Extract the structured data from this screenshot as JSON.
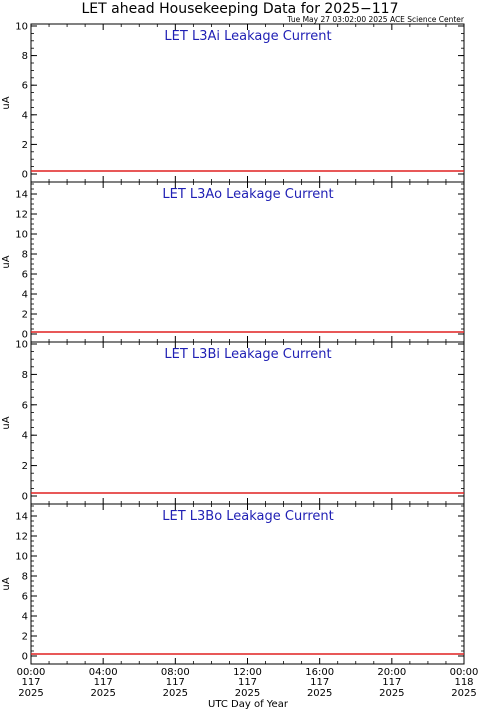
{
  "figure": {
    "title": "LET ahead Housekeeping Data for 2025−117",
    "timestamp": "Tue May 27 03:02:00 2025 ACE Science Center",
    "xlabel": "UTC Day of Year",
    "title_color": "#000000",
    "panel_title_color": "#1f1fb4",
    "series_color": "#e02020"
  },
  "chart_data": [
    {
      "type": "line",
      "title": "LET L3Ai Leakage Current",
      "ylabel": "uA",
      "ylim": [
        0,
        10
      ],
      "yticks": [
        0,
        2,
        4,
        6,
        8,
        10
      ],
      "x_range_hours": [
        0,
        24
      ],
      "series": [
        {
          "x": [
            0,
            24
          ],
          "y": [
            0.2,
            0.2
          ]
        }
      ]
    },
    {
      "type": "line",
      "title": "LET L3Ao Leakage Current",
      "ylabel": "uA",
      "ylim": [
        0,
        15
      ],
      "yticks": [
        0,
        2,
        4,
        6,
        8,
        10,
        12,
        14
      ],
      "x_range_hours": [
        0,
        24
      ],
      "series": [
        {
          "x": [
            0,
            24
          ],
          "y": [
            0.2,
            0.2
          ]
        }
      ]
    },
    {
      "type": "line",
      "title": "LET L3Bi Leakage Current",
      "ylabel": "uA",
      "ylim": [
        0,
        10
      ],
      "yticks": [
        0,
        2,
        4,
        6,
        8,
        10
      ],
      "x_range_hours": [
        0,
        24
      ],
      "series": [
        {
          "x": [
            0,
            24
          ],
          "y": [
            0.2,
            0.2
          ]
        }
      ]
    },
    {
      "type": "line",
      "title": "LET L3Bo Leakage Current",
      "ylabel": "uA",
      "ylim": [
        0,
        15
      ],
      "yticks": [
        0,
        2,
        4,
        6,
        8,
        10,
        12,
        14
      ],
      "x_range_hours": [
        0,
        24
      ],
      "series": [
        {
          "x": [
            0,
            24
          ],
          "y": [
            0.2,
            0.2
          ]
        }
      ]
    }
  ],
  "x_axis": {
    "ticks": [
      {
        "hour": 0,
        "time": "00:00",
        "doy": "117",
        "year": "2025"
      },
      {
        "hour": 4,
        "time": "04:00",
        "doy": "117",
        "year": "2025"
      },
      {
        "hour": 8,
        "time": "08:00",
        "doy": "117",
        "year": "2025"
      },
      {
        "hour": 12,
        "time": "12:00",
        "doy": "117",
        "year": "2025"
      },
      {
        "hour": 16,
        "time": "16:00",
        "doy": "117",
        "year": "2025"
      },
      {
        "hour": 20,
        "time": "20:00",
        "doy": "117",
        "year": "2025"
      },
      {
        "hour": 24,
        "time": "00:00",
        "doy": "118",
        "year": "2025"
      }
    ]
  }
}
